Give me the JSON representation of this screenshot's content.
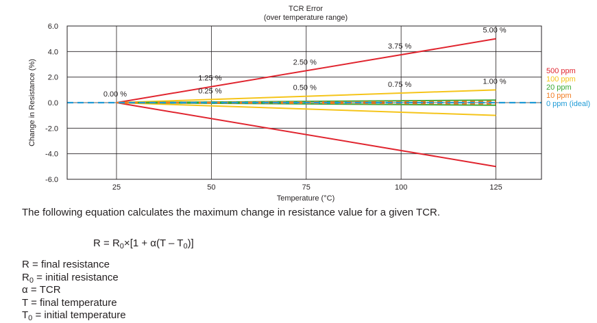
{
  "chart_data": {
    "type": "line",
    "title": "TCR Error",
    "subtitle": "(over temperature range)",
    "xlabel": "Temperature (°C)",
    "ylabel": "Change in Resistance (%)",
    "xlim": [
      12,
      137
    ],
    "ylim": [
      -6,
      6
    ],
    "x_ticks": [
      25,
      50,
      75,
      100,
      125
    ],
    "y_ticks": [
      "6.0",
      "4.0",
      "2.0",
      "0.0",
      "-2.0",
      "-4.0",
      "-6.0"
    ],
    "y_tick_values": [
      6,
      4,
      2,
      0,
      -2,
      -4,
      -6
    ],
    "grid": true,
    "legend_position": "right",
    "series": [
      {
        "name": "500 ppm",
        "color": "#e0242e",
        "style": "solid",
        "x": [
          25,
          125
        ],
        "y_upper": [
          0,
          5.0
        ],
        "y_lower": [
          0,
          -5.0
        ]
      },
      {
        "name": "100 ppm",
        "color": "#f5c419",
        "style": "solid",
        "x": [
          25,
          125
        ],
        "y_upper": [
          0,
          1.0
        ],
        "y_lower": [
          0,
          -1.0
        ]
      },
      {
        "name": "20 ppm",
        "color": "#3aa935",
        "style": "solid",
        "x": [
          25,
          125
        ],
        "y_upper": [
          0,
          0.2
        ],
        "y_lower": [
          0,
          -0.2
        ]
      },
      {
        "name": "10 ppm",
        "color": "#f07c22",
        "style": "dashed",
        "x": [
          25,
          125
        ],
        "y_upper": [
          0,
          0.1
        ],
        "y_lower": [
          0,
          -0.1
        ]
      },
      {
        "name": "0 ppm (ideal)",
        "color": "#1d9ad6",
        "style": "dashed",
        "x": [
          12,
          137
        ],
        "y_upper": [
          0,
          0
        ],
        "y_lower": [
          0,
          0
        ]
      }
    ],
    "annotations": [
      {
        "text": "0.00 %",
        "x": 25,
        "y": 0
      },
      {
        "text": "1.25 %",
        "x": 50,
        "y": 1.25
      },
      {
        "text": "2.50 %",
        "x": 75,
        "y": 2.5
      },
      {
        "text": "3.75 %",
        "x": 100,
        "y": 3.75
      },
      {
        "text": "5.00 %",
        "x": 125,
        "y": 5.0
      },
      {
        "text": "0.25 %",
        "x": 50,
        "y": 0.25
      },
      {
        "text": "0.50 %",
        "x": 75,
        "y": 0.5
      },
      {
        "text": "0.75 %",
        "x": 100,
        "y": 0.75
      },
      {
        "text": "1.00 %",
        "x": 125,
        "y": 1.0
      }
    ]
  },
  "text": {
    "paragraph": "The following equation calculates the maximum change in resistance value for a given TCR.",
    "equation": {
      "lhs": "R",
      "eq": "=",
      "r0_main": "R",
      "r0_sub": "0",
      "times": "×",
      "open": "[1 + ",
      "alpha": "α",
      "paren_open": "(T – T",
      "t0_sub": "0",
      "close": ")]"
    },
    "definitions": [
      {
        "sym": "R",
        "sub": "",
        "desc": " = final resistance"
      },
      {
        "sym": "R",
        "sub": "0",
        "desc": " = initial resistance"
      },
      {
        "sym": "α",
        "sub": "",
        "desc": " = TCR"
      },
      {
        "sym": "T",
        "sub": "",
        "desc": " = final temperature"
      },
      {
        "sym": "T",
        "sub": "0",
        "desc": " = initial temperature"
      }
    ]
  }
}
